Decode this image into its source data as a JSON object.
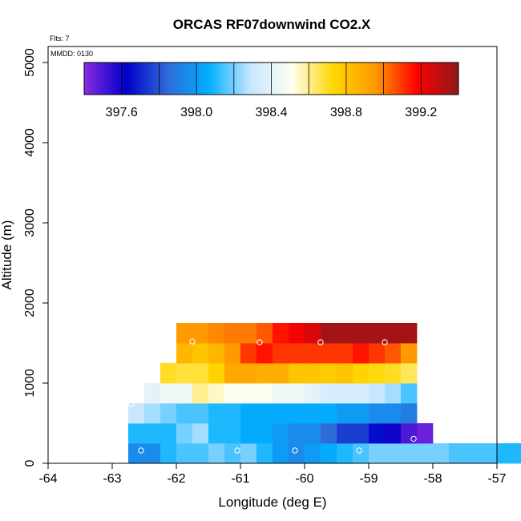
{
  "chart_data": {
    "type": "heatmap",
    "title": "ORCAS RF07downwind CO2.X",
    "flights_note": "Flts: 7",
    "date_note": "MMDD: 0130",
    "xlabel": "Longitude (deg E)",
    "ylabel": "Altitude (m)",
    "xlim": [
      -64,
      -57
    ],
    "ylim": [
      0,
      5200
    ],
    "x_ticks": [
      "-64",
      "-63",
      "-62",
      "-61",
      "-60",
      "-59",
      "-58",
      "-57"
    ],
    "y_ticks": [
      "0",
      "1000",
      "2000",
      "3000",
      "4000",
      "5000"
    ],
    "colorbar": {
      "range": [
        397.4,
        399.4
      ],
      "ticks": [
        "397.6",
        "398.0",
        "398.4",
        "398.8",
        "399.2"
      ],
      "tick_values": [
        397.6,
        398.0,
        398.4,
        398.8,
        399.2
      ],
      "colors": [
        "#8a2be2",
        "#0000c8",
        "#2f6ad8",
        "#00b0ff",
        "#c6e6ff",
        "#fffff0",
        "#ffd700",
        "#ff9900",
        "#ff0000",
        "#8b1a1a"
      ]
    },
    "cell_width_lon": 0.25,
    "cell_height_m": 250,
    "rows": [
      {
        "alt": 0,
        "lon_start": -62.75,
        "values": [
          397.95,
          397.95,
          398.1,
          398.15,
          398.15,
          398.2,
          398.15,
          398.2,
          398.1,
          398.0,
          397.95,
          398.0,
          398.05,
          398.1,
          398.15,
          398.2,
          398.2,
          398.2,
          398.2,
          398.2,
          398.15,
          398.15,
          398.15,
          398.1,
          398.1,
          398.1,
          398.1
        ]
      },
      {
        "alt": 250,
        "lon_start": -62.75,
        "values": [
          398.1,
          398.1,
          398.1,
          398.2,
          398.25,
          398.1,
          398.1,
          398.05,
          398.05,
          398.0,
          397.95,
          397.95,
          397.85,
          397.75,
          397.75,
          397.65,
          397.6,
          397.5,
          397.45
        ]
      },
      {
        "alt": 500,
        "lon_start": -62.75,
        "values": [
          398.3,
          398.25,
          398.2,
          398.15,
          398.15,
          398.1,
          398.1,
          398.05,
          398.05,
          398.05,
          398.05,
          398.05,
          398.05,
          398.0,
          398.0,
          397.95,
          397.95,
          397.9
        ]
      },
      {
        "alt": 750,
        "lon_start": -62.5,
        "values": [
          398.4,
          398.45,
          398.45,
          398.6,
          398.55,
          398.5,
          398.5,
          398.5,
          398.45,
          398.45,
          398.4,
          398.35,
          398.35,
          398.35,
          398.3,
          398.25,
          398.15
        ]
      },
      {
        "alt": 1000,
        "lon_start": -62.25,
        "values": [
          398.7,
          398.68,
          398.68,
          398.75,
          398.9,
          398.9,
          398.88,
          398.88,
          398.8,
          398.8,
          398.78,
          398.8,
          398.75,
          398.72,
          398.7,
          398.65
        ]
      },
      {
        "alt": 1250,
        "lon_start": -62.0,
        "values": [
          398.85,
          398.8,
          398.85,
          398.95,
          399.1,
          399.15,
          399.1,
          399.1,
          399.1,
          399.1,
          399.1,
          399.15,
          399.1,
          399.05,
          398.95
        ]
      },
      {
        "alt": 1500,
        "lon_start": -62.0,
        "values": [
          398.95,
          398.95,
          398.98,
          399.0,
          399.0,
          399.05,
          399.15,
          399.2,
          399.25,
          399.35,
          399.35,
          399.35,
          399.35,
          399.35,
          399.35
        ]
      }
    ],
    "markers": [
      {
        "lon": -62.55,
        "alt": 160
      },
      {
        "lon": -61.05,
        "alt": 160
      },
      {
        "lon": -60.15,
        "alt": 160
      },
      {
        "lon": -59.15,
        "alt": 160
      },
      {
        "lon": -62.7,
        "alt": 735
      },
      {
        "lon": -58.3,
        "alt": 305
      },
      {
        "lon": -61.75,
        "alt": 1520
      },
      {
        "lon": -60.7,
        "alt": 1510
      },
      {
        "lon": -59.75,
        "alt": 1510
      },
      {
        "lon": -58.75,
        "alt": 1510
      }
    ]
  }
}
